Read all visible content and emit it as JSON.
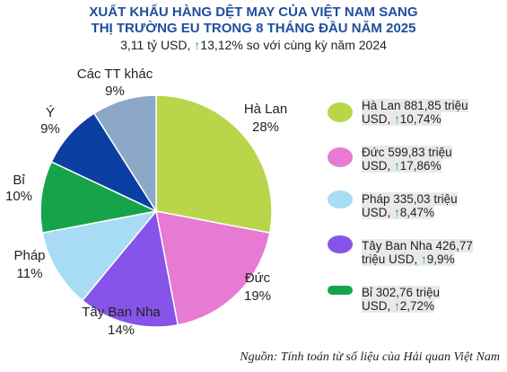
{
  "header": {
    "title_line1": "XUẤT KHẨU HÀNG DỆT MAY CỦA VIỆT NAM SANG",
    "title_line2": "THỊ TRƯỜNG EU TRONG 8 THÁNG ĐẦU NĂM 2025",
    "subtitle_pre": "3,11 tỷ USD,",
    "subtitle_arrow": "↑",
    "subtitle_post": "13,12% so với cùng kỳ năm 2024"
  },
  "chart_data": {
    "type": "pie",
    "slices": [
      {
        "label": "Hà Lan",
        "pct_label": "28%",
        "value": 28,
        "color": "#b9d64a"
      },
      {
        "label": "Đức",
        "pct_label": "19%",
        "value": 19,
        "color": "#e77ad3"
      },
      {
        "label": "Tây Ban Nha",
        "pct_label": "14%",
        "value": 14,
        "color": "#8654e8"
      },
      {
        "label": "Pháp",
        "pct_label": "11%",
        "value": 11,
        "color": "#a8dcf5"
      },
      {
        "label": "Bỉ",
        "pct_label": "10%",
        "value": 10,
        "color": "#16a44b"
      },
      {
        "label": "Ý",
        "pct_label": "9%",
        "value": 9,
        "color": "#0c3fa2"
      },
      {
        "label": "Các TT khác",
        "pct_label": "9%",
        "value": 9,
        "color": "#8da8c6"
      }
    ]
  },
  "legend": [
    {
      "line1": "Hà Lan 881,85 triệu",
      "line2_pre": "USD,",
      "arrow": "↑",
      "line2_post": "10,74%",
      "color": "#b9d64a"
    },
    {
      "line1": "Đức 599,83 triệu",
      "line2_pre": "USD,",
      "arrow": "↑",
      "line2_post": "17,86%",
      "color": "#e77ad3"
    },
    {
      "line1": "Pháp 335,03 triệu",
      "line2_pre": "USD,",
      "arrow": "↑",
      "line2_post": "8,47%",
      "color": "#a8dcf5"
    },
    {
      "line1": "Tây Ban Nha 426,77",
      "line2_pre": "triệu USD,",
      "arrow": "↑",
      "line2_post": "9,9%",
      "color": "#8654e8"
    },
    {
      "line1": "Bỉ 302,76 triệu",
      "line2_pre": "USD,",
      "arrow": "↑",
      "line2_post": "2,72%",
      "color": "#16a44b"
    }
  ],
  "footer": {
    "source": "Nguồn: Tính toán từ số liệu của Hải quan Việt Nam"
  }
}
